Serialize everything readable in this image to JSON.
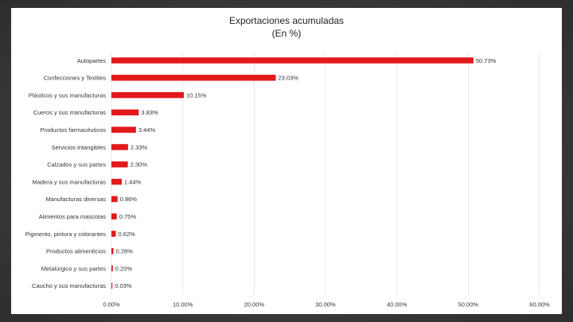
{
  "chart_data": {
    "type": "bar",
    "orientation": "horizontal",
    "title": "Exportaciones acumuladas",
    "subtitle": "(En %)",
    "categories": [
      "Autopartes",
      "Confecciones y Textiles",
      "Plásticos y sus manufacturas",
      "Cueros y sus manufacturas",
      "Productos farmacéuticos",
      "Servicios intangibles",
      "Calzados y sus partes",
      "Madera y sus manufacturas",
      "Manufacturas diversas",
      "Alimentos para mascotas",
      "Pigmento, pintura y colorantes",
      "Productos alimenticios",
      "Metalúrgico y sus partes",
      "Caucho y sus manufacturas"
    ],
    "values": [
      50.73,
      23.03,
      10.15,
      3.83,
      3.44,
      2.33,
      2.3,
      1.44,
      0.86,
      0.75,
      0.62,
      0.28,
      0.2,
      0.03
    ],
    "value_labels": [
      "50.73%",
      "23.03%",
      "10.15%",
      "3.83%",
      "3.44%",
      "2.33%",
      "2.30%",
      "1.44%",
      "0.86%",
      "0.75%",
      "0.62%",
      "0.28%",
      "0.20%",
      "0.03%"
    ],
    "x_ticks": [
      "0.00%",
      "10.00%",
      "20.00%",
      "30.00%",
      "40.00%",
      "50.00%",
      "60.00%"
    ],
    "xlim": [
      0,
      60
    ],
    "bar_color": "#e3191c",
    "grid": true
  }
}
